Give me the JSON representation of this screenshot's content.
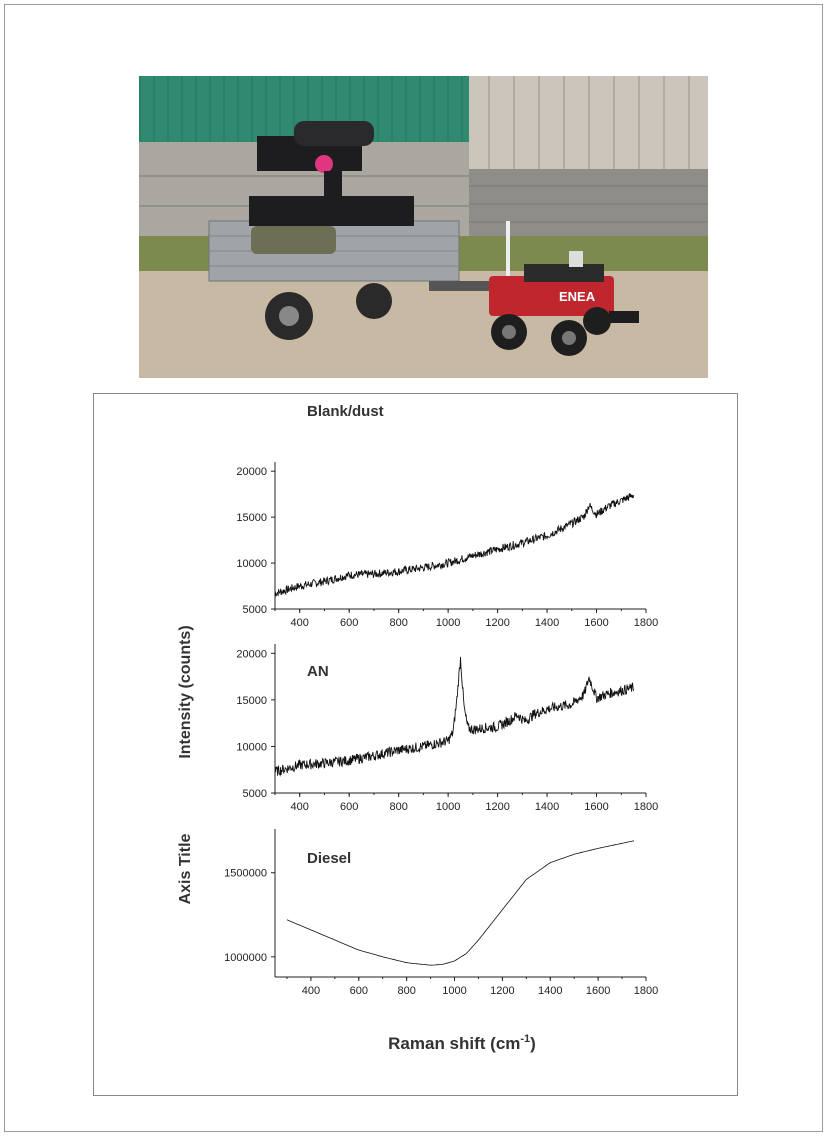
{
  "photo": {
    "robot_logo": "ENEA",
    "colors": {
      "trailer": "#9ea4a8",
      "robot": "#c0262d",
      "device": "#1d1d1f",
      "green_panel": "#2f8a70"
    }
  },
  "chart_data": [
    {
      "type": "line",
      "title": "Blank/dust",
      "xlim": [
        300,
        1800
      ],
      "ylim": [
        5000,
        21000
      ],
      "xticks": [
        "400",
        "600",
        "800",
        "1000",
        "1200",
        "1400",
        "1600",
        "1800"
      ],
      "yticks": [
        "5000",
        "10000",
        "15000",
        "20000"
      ],
      "series": [
        {
          "x": [
            300,
            400,
            500,
            600,
            700,
            800,
            900,
            1000,
            1100,
            1200,
            1300,
            1400,
            1500,
            1550,
            1570,
            1600,
            1650,
            1700,
            1750
          ],
          "y": [
            6700,
            7500,
            8000,
            8700,
            8800,
            9100,
            9500,
            10000,
            10800,
            11500,
            12200,
            13000,
            14300,
            15100,
            16300,
            15300,
            16200,
            16800,
            17400
          ],
          "noise": 450
        }
      ]
    },
    {
      "type": "line",
      "title": "AN",
      "xlim": [
        300,
        1800
      ],
      "ylim": [
        5000,
        21000
      ],
      "xticks": [
        "400",
        "600",
        "800",
        "1000",
        "1200",
        "1400",
        "1600",
        "1800"
      ],
      "yticks": [
        "5000",
        "10000",
        "15000",
        "20000"
      ],
      "series": [
        {
          "x": [
            300,
            400,
            500,
            600,
            700,
            800,
            900,
            1000,
            1020,
            1035,
            1050,
            1065,
            1080,
            1100,
            1150,
            1200,
            1250,
            1280,
            1310,
            1350,
            1400,
            1450,
            1500,
            1550,
            1570,
            1600,
            1650,
            1700,
            1750
          ],
          "y": [
            7300,
            8000,
            8200,
            8500,
            9000,
            9600,
            10000,
            10600,
            11500,
            15000,
            19500,
            14000,
            12000,
            11800,
            12000,
            12100,
            12800,
            13400,
            12700,
            13500,
            14000,
            14300,
            14500,
            15600,
            17400,
            15200,
            15700,
            16000,
            16300
          ],
          "noise": 550
        }
      ]
    },
    {
      "type": "line",
      "title": "Diesel",
      "xlim": [
        250,
        1800
      ],
      "ylim": [
        880000,
        1760000
      ],
      "xticks": [
        "400",
        "600",
        "800",
        "1000",
        "1200",
        "1400",
        "1600",
        "1800"
      ],
      "yticks": [
        "1000000",
        "1500000"
      ],
      "series": [
        {
          "x": [
            300,
            400,
            500,
            600,
            700,
            800,
            900,
            950,
            1000,
            1050,
            1100,
            1200,
            1300,
            1400,
            1500,
            1600,
            1700,
            1750
          ],
          "y": [
            1220000,
            1160000,
            1100000,
            1040000,
            1000000,
            965000,
            950000,
            955000,
            975000,
            1020000,
            1100000,
            1280000,
            1460000,
            1560000,
            1610000,
            1645000,
            1675000,
            1690000
          ],
          "noise": 0
        }
      ]
    }
  ],
  "axes": {
    "ylabel_top": "Intensity (counts)",
    "ylabel_bottom": "Axis Title",
    "xlabel_main": "Raman shift (cm",
    "xlabel_sup": "-1",
    "xlabel_tail": ")"
  }
}
